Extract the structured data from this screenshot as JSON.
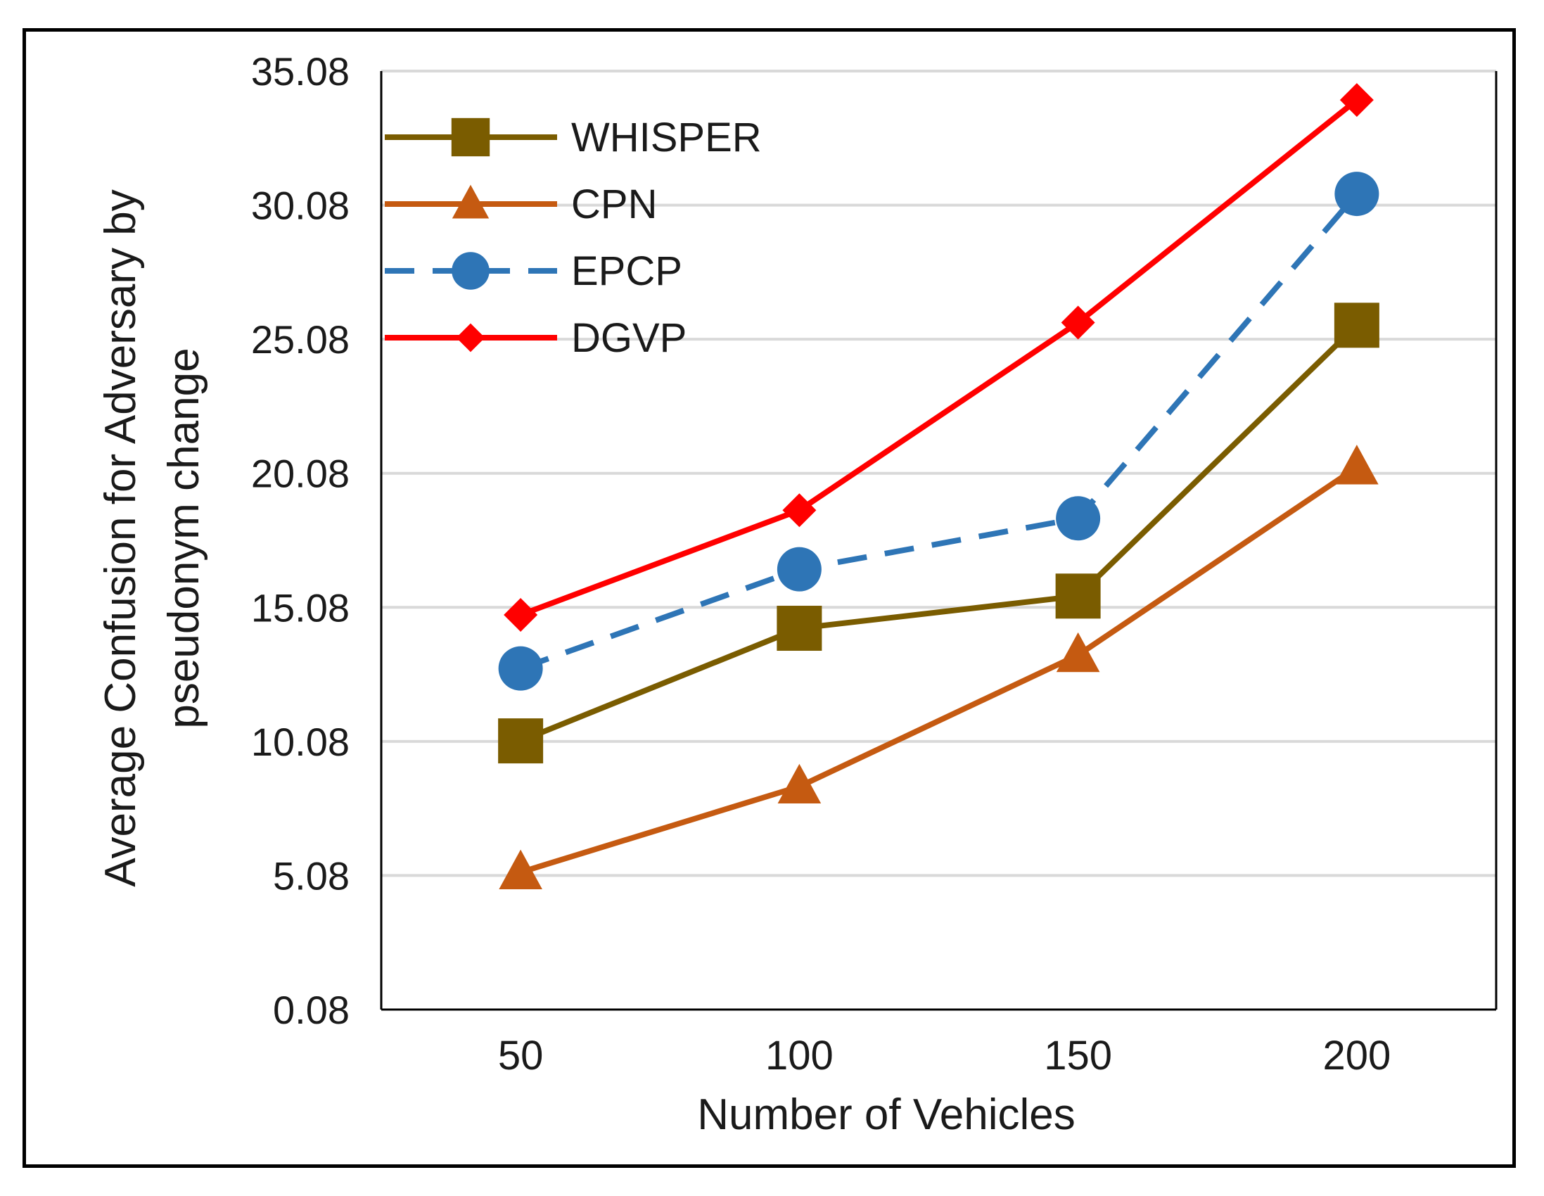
{
  "chart_data": {
    "type": "line",
    "title": "",
    "xlabel": "Number of Vehicles",
    "ylabel_lines": [
      "Average  Confusion for Adversary by",
      "pseudonym change"
    ],
    "categories": [
      "50",
      "100",
      "150",
      "200"
    ],
    "y_ticks": [
      "0.08",
      "5.08",
      "10.08",
      "15.08",
      "20.08",
      "25.08",
      "30.08",
      "35.08"
    ],
    "ylim": [
      0.08,
      35.08
    ],
    "grid": true,
    "legend_position": "top-left",
    "series": [
      {
        "name": "WHISPER",
        "color": "#7a5c00",
        "marker": "square",
        "dashed": false,
        "values": [
          10.1,
          14.3,
          15.5,
          25.6
        ]
      },
      {
        "name": "CPN",
        "color": "#c55a11",
        "marker": "triangle",
        "dashed": false,
        "values": [
          5.2,
          8.4,
          13.3,
          20.3
        ]
      },
      {
        "name": "EPCP",
        "color": "#2e75b6",
        "marker": "circle",
        "dashed": true,
        "values": [
          12.8,
          16.5,
          18.4,
          30.5
        ]
      },
      {
        "name": "DGVP",
        "color": "#ff0000",
        "marker": "diamond",
        "dashed": false,
        "values": [
          14.8,
          18.7,
          25.7,
          34.0
        ]
      }
    ]
  }
}
